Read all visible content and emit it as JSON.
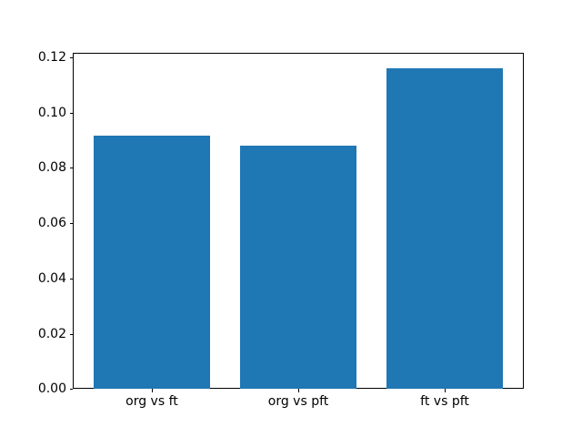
{
  "chart_data": {
    "type": "bar",
    "title": "",
    "xlabel": "",
    "ylabel": "",
    "categories": [
      "org vs ft",
      "org vs pft",
      "ft vs pft"
    ],
    "values": [
      0.0917,
      0.0881,
      0.116
    ],
    "yticks": [
      "0.00",
      "0.02",
      "0.04",
      "0.06",
      "0.08",
      "0.10",
      "0.12"
    ],
    "ytick_values": [
      0.0,
      0.02,
      0.04,
      0.06,
      0.08,
      0.1,
      0.12
    ],
    "ylim": [
      0,
      0.1218
    ],
    "xlim": [
      -0.54,
      2.54
    ],
    "bar_width_units": 0.8,
    "grid": false,
    "legend": null,
    "bar_color": "#1f77b4",
    "axis_color": "#000000",
    "background_color": "#ffffff"
  }
}
